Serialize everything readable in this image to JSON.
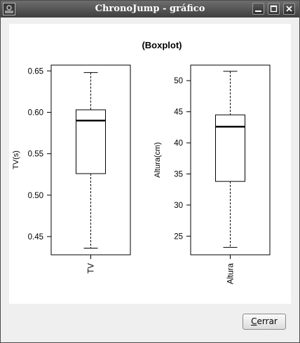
{
  "window": {
    "title": "ChronoJump - gráfico"
  },
  "footer": {
    "close_label": "Cerrar",
    "close_mnemonic": "C",
    "close_rest": "errar"
  },
  "chart_data": {
    "type": "boxplot",
    "title": "(Boxplot)",
    "panels": [
      {
        "category": "TV",
        "ylabel": "TV(s)",
        "ylim": [
          0.428,
          0.657
        ],
        "yticks": [
          "0.45",
          "0.50",
          "0.55",
          "0.60",
          "0.65"
        ],
        "ytick_values": [
          0.45,
          0.5,
          0.55,
          0.6,
          0.65
        ],
        "min": 0.436,
        "q1": 0.526,
        "median": 0.59,
        "q3": 0.603,
        "max": 0.648
      },
      {
        "category": "Altura",
        "ylabel": "Altura(cm)",
        "ylim": [
          22.0,
          52.5
        ],
        "yticks": [
          "25",
          "30",
          "35",
          "40",
          "45",
          "50"
        ],
        "ytick_values": [
          25,
          30,
          35,
          40,
          45,
          50
        ],
        "min": 23.2,
        "q1": 33.8,
        "median": 42.6,
        "q3": 44.5,
        "max": 51.5
      }
    ]
  }
}
